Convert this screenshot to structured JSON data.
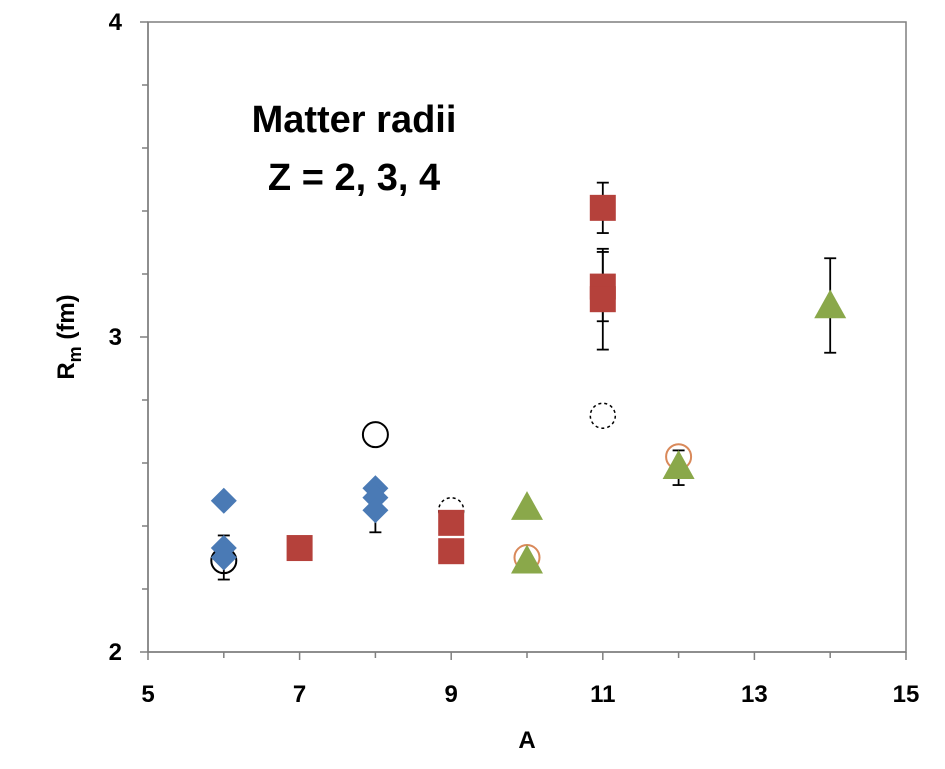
{
  "chart_data": {
    "type": "scatter",
    "title": "",
    "annotation_lines": [
      "Matter radii",
      "Z = 2, 3, 4"
    ],
    "xlabel": "A",
    "ylabel_main": "R",
    "ylabel_sub": "m",
    "ylabel_unit": " (fm)",
    "xlim": [
      5,
      15
    ],
    "ylim": [
      2,
      4
    ],
    "x_ticks": [
      5,
      7,
      9,
      11,
      13,
      15
    ],
    "x_tick_labels": [
      "5",
      "7",
      "9",
      "11",
      "13",
      "15"
    ],
    "y_major_ticks": [
      2,
      3,
      4
    ],
    "y_tick_labels": [
      "2",
      "3",
      "4"
    ],
    "y_minor_ticks": [
      2.2,
      2.4,
      2.6,
      2.8,
      3.2,
      3.4,
      3.6,
      3.8
    ],
    "x_minor_ticks": [
      6,
      8,
      10,
      12,
      14
    ],
    "grid": false,
    "colors": {
      "blue_diamond": "#4a7ab5",
      "red_square": "#b5413b",
      "green_triangle": "#8aa84a",
      "orange_circle": "#d9895a",
      "black": "#000000"
    },
    "series": [
      {
        "name": "open circles",
        "marker": "circle-open",
        "color": "#000000",
        "points": [
          {
            "x": 6,
            "y": 2.29
          },
          {
            "x": 8,
            "y": 2.69
          }
        ]
      },
      {
        "name": "dashed open circles",
        "marker": "circle-dashed",
        "color": "#000000",
        "points": [
          {
            "x": 9,
            "y": 2.45
          },
          {
            "x": 11,
            "y": 2.75
          }
        ]
      },
      {
        "name": "orange open circles",
        "marker": "circle-open",
        "color": "#d9895a",
        "points": [
          {
            "x": 10,
            "y": 2.3
          },
          {
            "x": 12,
            "y": 2.62
          }
        ]
      },
      {
        "name": "Z = 2",
        "marker": "diamond",
        "color": "#4a7ab5",
        "points": [
          {
            "x": 6,
            "y": 2.48
          },
          {
            "x": 6,
            "y": 2.33
          },
          {
            "x": 6,
            "y": 2.3,
            "err_low": 2.23,
            "err_high": 2.37
          },
          {
            "x": 8,
            "y": 2.52
          },
          {
            "x": 8,
            "y": 2.49
          },
          {
            "x": 8,
            "y": 2.45,
            "err_low": 2.38,
            "err_high": 2.52
          }
        ]
      },
      {
        "name": "Z = 3",
        "marker": "square",
        "color": "#b5413b",
        "points": [
          {
            "x": 7,
            "y": 2.33
          },
          {
            "x": 9,
            "y": 2.41
          },
          {
            "x": 9,
            "y": 2.32
          },
          {
            "x": 11,
            "y": 3.41,
            "err_low": 3.33,
            "err_high": 3.49
          },
          {
            "x": 11,
            "y": 3.16,
            "err_low": 3.05,
            "err_high": 3.28
          },
          {
            "x": 11,
            "y": 3.12,
            "err_low": 2.96,
            "err_high": 3.27
          }
        ]
      },
      {
        "name": "Z = 4",
        "marker": "triangle",
        "color": "#8aa84a",
        "points": [
          {
            "x": 10,
            "y": 2.46
          },
          {
            "x": 10,
            "y": 2.29
          },
          {
            "x": 12,
            "y": 2.59,
            "err_low": 2.53,
            "err_high": 2.64
          },
          {
            "x": 14,
            "y": 3.1,
            "err_low": 2.95,
            "err_high": 3.25
          }
        ]
      }
    ]
  }
}
